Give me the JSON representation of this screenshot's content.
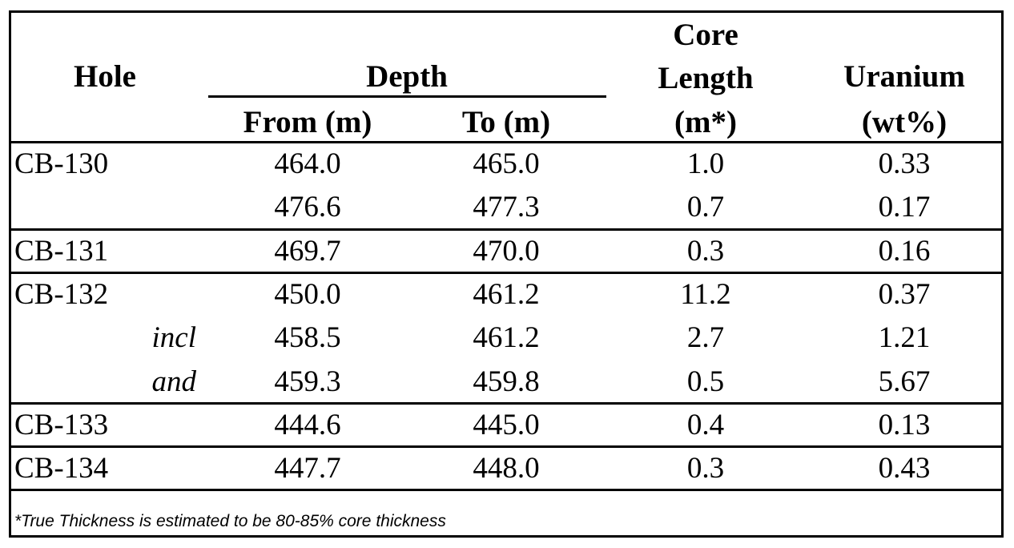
{
  "table": {
    "headers": {
      "hole": "Hole",
      "depth": "Depth",
      "from": "From (m)",
      "to": "To (m)",
      "core_length_line1": "Core",
      "core_length_line2": "Length",
      "core_length_line3": "(m*)",
      "uranium_line1": "Uranium",
      "uranium_line2": "(wt%)"
    },
    "rows": [
      {
        "hole": "CB-130",
        "qualifier": "",
        "from": "464.0",
        "to": "465.0",
        "core": "1.0",
        "uranium": "0.33"
      },
      {
        "hole": "",
        "qualifier": "",
        "from": "476.6",
        "to": "477.3",
        "core": "0.7",
        "uranium": "0.17"
      },
      {
        "hole": "CB-131",
        "qualifier": "",
        "from": "469.7",
        "to": "470.0",
        "core": "0.3",
        "uranium": "0.16"
      },
      {
        "hole": "CB-132",
        "qualifier": "",
        "from": "450.0",
        "to": "461.2",
        "core": "11.2",
        "uranium": "0.37"
      },
      {
        "hole": "",
        "qualifier": "incl",
        "from": "458.5",
        "to": "461.2",
        "core": "2.7",
        "uranium": "1.21"
      },
      {
        "hole": "",
        "qualifier": "and",
        "from": "459.3",
        "to": "459.8",
        "core": "0.5",
        "uranium": "5.67"
      },
      {
        "hole": "CB-133",
        "qualifier": "",
        "from": "444.6",
        "to": "445.0",
        "core": "0.4",
        "uranium": "0.13"
      },
      {
        "hole": "CB-134",
        "qualifier": "",
        "from": "447.7",
        "to": "448.0",
        "core": "0.3",
        "uranium": "0.43"
      }
    ],
    "footnote": "*True Thickness is estimated to be 80-85% core thickness"
  }
}
